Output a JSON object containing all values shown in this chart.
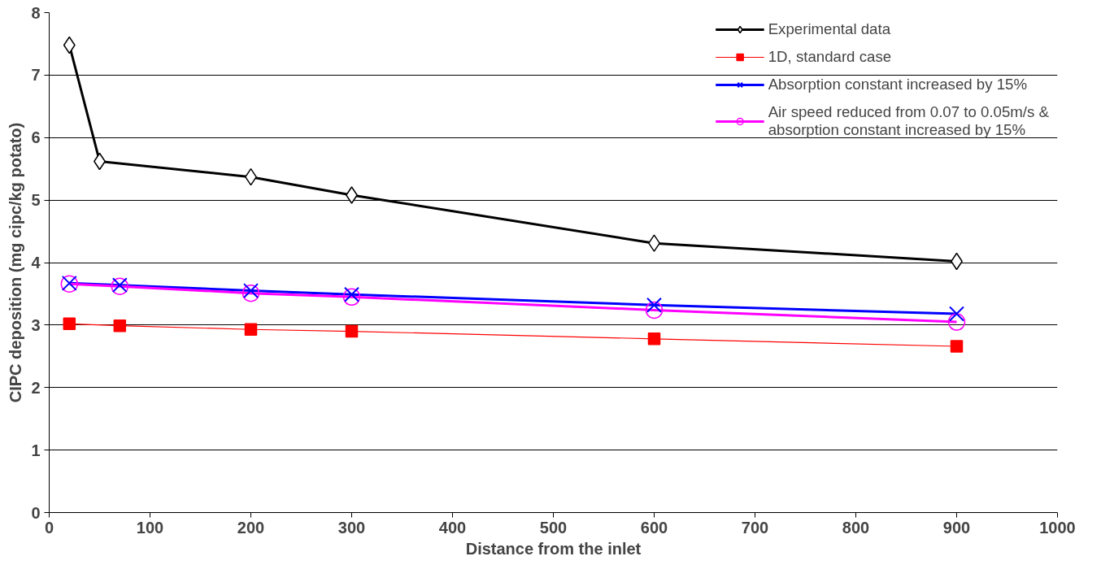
{
  "chart_data": {
    "type": "line",
    "xlabel": "Distance from the inlet",
    "ylabel": "CIPC deposition (mg cipc/kg potato)",
    "xlim": [
      0,
      1000
    ],
    "xticks": [
      0,
      100,
      200,
      300,
      400,
      500,
      600,
      700,
      800,
      900,
      1000
    ],
    "ylim": [
      0,
      8
    ],
    "yticks": [
      0,
      1,
      2,
      3,
      4,
      5,
      6,
      7,
      8
    ],
    "grid": "y",
    "legend": "top right",
    "line_style": "solid",
    "series": [
      {
        "name": "Experimental data",
        "color": "#000000",
        "marker": "diamond",
        "x": [
          20,
          50,
          200,
          300,
          600,
          900
        ],
        "values": [
          7.48,
          5.62,
          5.37,
          5.08,
          4.31,
          4.02
        ]
      },
      {
        "name": "1D, standard case",
        "color": "#ff0000",
        "marker": "square",
        "x": [
          20,
          70,
          200,
          300,
          600,
          900
        ],
        "values": [
          3.02,
          2.99,
          2.93,
          2.9,
          2.78,
          2.66
        ]
      },
      {
        "name": "Absorption constant increased by 15%",
        "color": "#0000ff",
        "marker": "cross",
        "x": [
          20,
          70,
          200,
          300,
          600,
          900
        ],
        "values": [
          3.67,
          3.64,
          3.55,
          3.49,
          3.32,
          3.18
        ]
      },
      {
        "name": "Air speed reduced from 0.07 to 0.05m/s &\nabsorption constant increased by 15%",
        "color": "#ff00ff",
        "marker": "circle",
        "x": [
          20,
          70,
          200,
          300,
          600,
          900
        ],
        "values": [
          3.66,
          3.62,
          3.51,
          3.45,
          3.24,
          3.05
        ]
      }
    ]
  }
}
